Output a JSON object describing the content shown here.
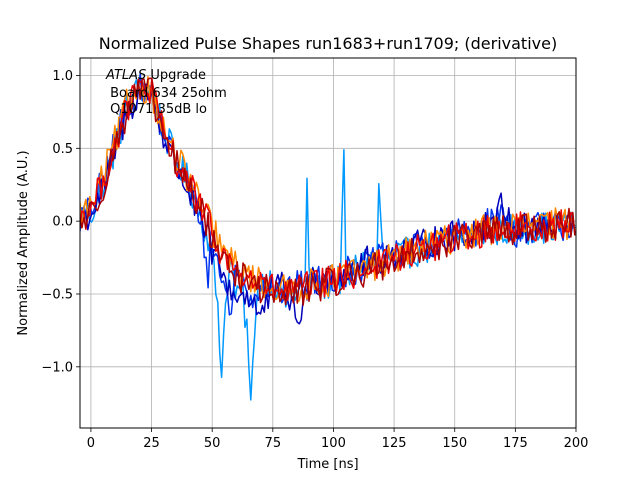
{
  "chart_data": {
    "type": "line",
    "title": "Normalized Pulse Shapes run1683+run1709; (derivative)",
    "xlabel": "Time [ns]",
    "ylabel": "Normalized Amplitude (A.U.)",
    "xlim": [
      -4.5,
      200
    ],
    "ylim": [
      -1.42,
      1.12
    ],
    "grid": true,
    "xticks": [
      0,
      25,
      50,
      75,
      100,
      125,
      150,
      175,
      200
    ],
    "yticks": [
      -1.0,
      -0.5,
      0.0,
      0.5,
      1.0
    ],
    "xtick_labels": [
      "0",
      "25",
      "50",
      "75",
      "100",
      "125",
      "150",
      "175",
      "200"
    ],
    "ytick_labels": [
      "−1.0",
      "−0.5",
      "0.0",
      "0.5",
      "1.0"
    ],
    "annotation": {
      "line1_italic": "ATLAS",
      "line1_rest": " Upgrade",
      "line2": " Board 634 25ohm",
      "line3": " Q1071 35dB lo"
    },
    "series": [
      {
        "name": "pulse-light-blue",
        "color": "#0099ff",
        "x": [
          -4,
          0,
          5,
          10,
          15,
          20,
          25,
          30,
          35,
          40,
          45,
          48,
          50,
          52,
          54,
          56,
          58,
          60,
          62,
          64,
          66,
          68,
          70,
          75,
          80,
          85,
          88,
          89,
          90,
          95,
          100,
          103,
          104,
          105,
          106,
          110,
          115,
          118,
          119,
          120,
          125,
          130,
          140,
          150,
          160,
          170,
          180,
          190,
          200
        ],
        "values": [
          0.05,
          0.05,
          0.25,
          0.5,
          0.78,
          0.92,
          0.9,
          0.62,
          0.42,
          0.28,
          0.05,
          -0.1,
          -0.25,
          -0.55,
          -1.03,
          -0.4,
          -0.3,
          -0.55,
          -0.45,
          -0.7,
          -1.3,
          -0.5,
          -0.42,
          -0.4,
          -0.55,
          -0.48,
          -0.45,
          0.32,
          -0.4,
          -0.45,
          -0.42,
          -0.4,
          0.38,
          -0.35,
          -0.4,
          -0.3,
          -0.28,
          -0.25,
          0.22,
          -0.25,
          -0.25,
          -0.22,
          -0.18,
          -0.12,
          -0.08,
          -0.06,
          -0.05,
          -0.04,
          -0.03
        ]
      },
      {
        "name": "pulse-blue",
        "color": "#0033ee",
        "x": [
          -4,
          0,
          5,
          10,
          15,
          20,
          25,
          30,
          35,
          40,
          45,
          48,
          50,
          55,
          58,
          60,
          65,
          70,
          75,
          80,
          85,
          90,
          95,
          100,
          110,
          120,
          130,
          140,
          150,
          160,
          170,
          175,
          180,
          190,
          200
        ],
        "values": [
          0.02,
          0.08,
          0.28,
          0.55,
          0.8,
          0.9,
          0.88,
          0.6,
          0.4,
          0.25,
          0.05,
          -0.35,
          -0.15,
          -0.45,
          -0.62,
          -0.3,
          -0.55,
          -0.42,
          -0.45,
          -0.5,
          -0.45,
          -0.42,
          -0.4,
          -0.38,
          -0.32,
          -0.26,
          -0.22,
          -0.15,
          -0.1,
          -0.06,
          0.05,
          -0.08,
          -0.04,
          -0.04,
          -0.02
        ]
      },
      {
        "name": "pulse-dark-blue",
        "color": "#0000bb",
        "x": [
          -4,
          0,
          5,
          10,
          15,
          20,
          25,
          30,
          35,
          40,
          45,
          50,
          55,
          60,
          65,
          70,
          75,
          80,
          85,
          90,
          95,
          100,
          110,
          120,
          130,
          140,
          150,
          160,
          170,
          176,
          180,
          190,
          200
        ],
        "values": [
          0.0,
          0.05,
          0.22,
          0.48,
          0.75,
          0.88,
          0.86,
          0.58,
          0.38,
          0.22,
          0.0,
          -0.2,
          -0.4,
          -0.52,
          -0.5,
          -0.65,
          -0.48,
          -0.45,
          -0.7,
          -0.42,
          -0.4,
          -0.38,
          -0.3,
          -0.25,
          -0.2,
          -0.14,
          -0.1,
          -0.05,
          0.1,
          -0.06,
          -0.05,
          -0.03,
          -0.02
        ]
      },
      {
        "name": "pulse-orange",
        "color": "#ff8800",
        "x": [
          -4,
          0,
          5,
          10,
          15,
          20,
          25,
          30,
          35,
          40,
          45,
          50,
          55,
          60,
          65,
          70,
          75,
          80,
          85,
          90,
          95,
          100,
          110,
          120,
          130,
          140,
          150,
          160,
          170,
          180,
          190,
          200
        ],
        "values": [
          0.05,
          0.1,
          0.3,
          0.55,
          0.8,
          0.93,
          0.9,
          0.62,
          0.44,
          0.3,
          0.12,
          -0.05,
          -0.22,
          -0.32,
          -0.38,
          -0.42,
          -0.45,
          -0.48,
          -0.46,
          -0.44,
          -0.42,
          -0.4,
          -0.34,
          -0.28,
          -0.22,
          -0.16,
          -0.11,
          -0.07,
          -0.04,
          -0.03,
          -0.02,
          -0.02
        ]
      },
      {
        "name": "pulse-red",
        "color": "#ee0000",
        "x": [
          -4,
          0,
          5,
          10,
          15,
          20,
          25,
          30,
          35,
          40,
          45,
          50,
          55,
          60,
          65,
          70,
          75,
          80,
          85,
          90,
          95,
          100,
          110,
          120,
          130,
          140,
          150,
          160,
          170,
          180,
          190,
          200
        ],
        "values": [
          0.03,
          0.08,
          0.28,
          0.52,
          0.78,
          0.92,
          0.89,
          0.6,
          0.42,
          0.28,
          0.1,
          -0.08,
          -0.25,
          -0.34,
          -0.4,
          -0.44,
          -0.46,
          -0.5,
          -0.47,
          -0.45,
          -0.43,
          -0.41,
          -0.35,
          -0.29,
          -0.23,
          -0.17,
          -0.12,
          -0.08,
          -0.05,
          -0.04,
          -0.03,
          -0.02
        ]
      },
      {
        "name": "pulse-dark-red",
        "color": "#aa0000",
        "x": [
          -4,
          0,
          5,
          10,
          15,
          20,
          25,
          30,
          35,
          40,
          45,
          50,
          55,
          60,
          65,
          70,
          75,
          80,
          85,
          90,
          95,
          100,
          110,
          120,
          130,
          140,
          150,
          160,
          170,
          180,
          190,
          200
        ],
        "values": [
          0.0,
          0.05,
          0.25,
          0.5,
          0.76,
          0.9,
          0.87,
          0.58,
          0.4,
          0.25,
          0.08,
          -0.1,
          -0.28,
          -0.36,
          -0.42,
          -0.46,
          -0.48,
          -0.52,
          -0.48,
          -0.46,
          -0.44,
          -0.42,
          -0.36,
          -0.3,
          -0.24,
          -0.18,
          -0.13,
          -0.09,
          -0.06,
          -0.05,
          -0.03,
          -0.02
        ]
      }
    ]
  }
}
